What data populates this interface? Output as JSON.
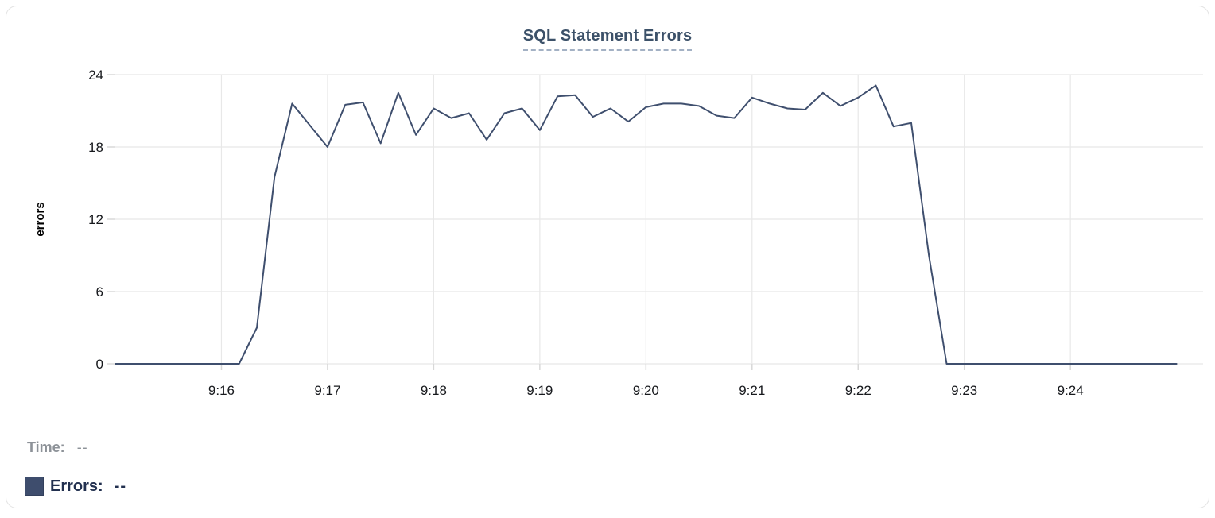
{
  "header": {
    "title": "SQL Statement Errors"
  },
  "tooltip": {
    "time_label": "Time:",
    "time_value": "--",
    "errors_label": "Errors:",
    "errors_value": "--"
  },
  "colors": {
    "line": "#3f4f6e",
    "swatch": "#3e4d6d",
    "title": "#3c5169",
    "title_underline": "#a3b1c4",
    "legend_text": "#22304f",
    "muted_text": "#8d9298",
    "axis_text": "#17191d",
    "gridline": "#e8e8e8",
    "tick_mark": "#d8d8d8"
  },
  "chart_data": {
    "type": "line",
    "title": "SQL Statement Errors",
    "xlabel": "",
    "ylabel": "errors",
    "ylim": [
      0,
      24
    ],
    "yticks": [
      0,
      6,
      12,
      18,
      24
    ],
    "xtick_labels": [
      "9:16",
      "9:17",
      "9:18",
      "9:19",
      "9:20",
      "9:21",
      "9:22",
      "9:23",
      "9:24"
    ],
    "x_range": [
      "9:15:00",
      "9:25:15"
    ],
    "grid": true,
    "legend_position": "bottom-left",
    "sample_interval_seconds": 10,
    "series": [
      {
        "name": "Errors",
        "times": [
          "9:15:00",
          "9:15:10",
          "9:15:20",
          "9:15:30",
          "9:15:40",
          "9:15:50",
          "9:16:00",
          "9:16:10",
          "9:16:20",
          "9:16:30",
          "9:16:40",
          "9:16:50",
          "9:17:00",
          "9:17:10",
          "9:17:20",
          "9:17:30",
          "9:17:40",
          "9:17:50",
          "9:18:00",
          "9:18:10",
          "9:18:20",
          "9:18:30",
          "9:18:40",
          "9:18:50",
          "9:19:00",
          "9:19:10",
          "9:19:20",
          "9:19:30",
          "9:19:40",
          "9:19:50",
          "9:20:00",
          "9:20:10",
          "9:20:20",
          "9:20:30",
          "9:20:40",
          "9:20:50",
          "9:21:00",
          "9:21:10",
          "9:21:20",
          "9:21:30",
          "9:21:40",
          "9:21:50",
          "9:22:00",
          "9:22:10",
          "9:22:20",
          "9:22:30",
          "9:22:40",
          "9:22:50",
          "9:23:00",
          "9:23:10",
          "9:23:20",
          "9:23:30",
          "9:23:40",
          "9:23:50",
          "9:24:00",
          "9:24:10",
          "9:24:20",
          "9:24:30",
          "9:24:40",
          "9:24:50",
          "9:25:00"
        ],
        "values": [
          0,
          0,
          0,
          0,
          0,
          0,
          0,
          0,
          3,
          15.5,
          21.6,
          19.8,
          18,
          21.5,
          21.7,
          18.3,
          22.5,
          19,
          21.2,
          20.4,
          20.8,
          18.6,
          20.8,
          21.2,
          19.4,
          22.2,
          22.3,
          20.5,
          21.2,
          20.1,
          21.3,
          21.6,
          21.6,
          21.4,
          20.6,
          20.4,
          22.1,
          21.6,
          21.2,
          21.1,
          22.5,
          21.4,
          22.1,
          23.1,
          19.7,
          20,
          9,
          0,
          0,
          0,
          0,
          0,
          0,
          0,
          0,
          0,
          0,
          0,
          0,
          0,
          0
        ]
      }
    ]
  }
}
